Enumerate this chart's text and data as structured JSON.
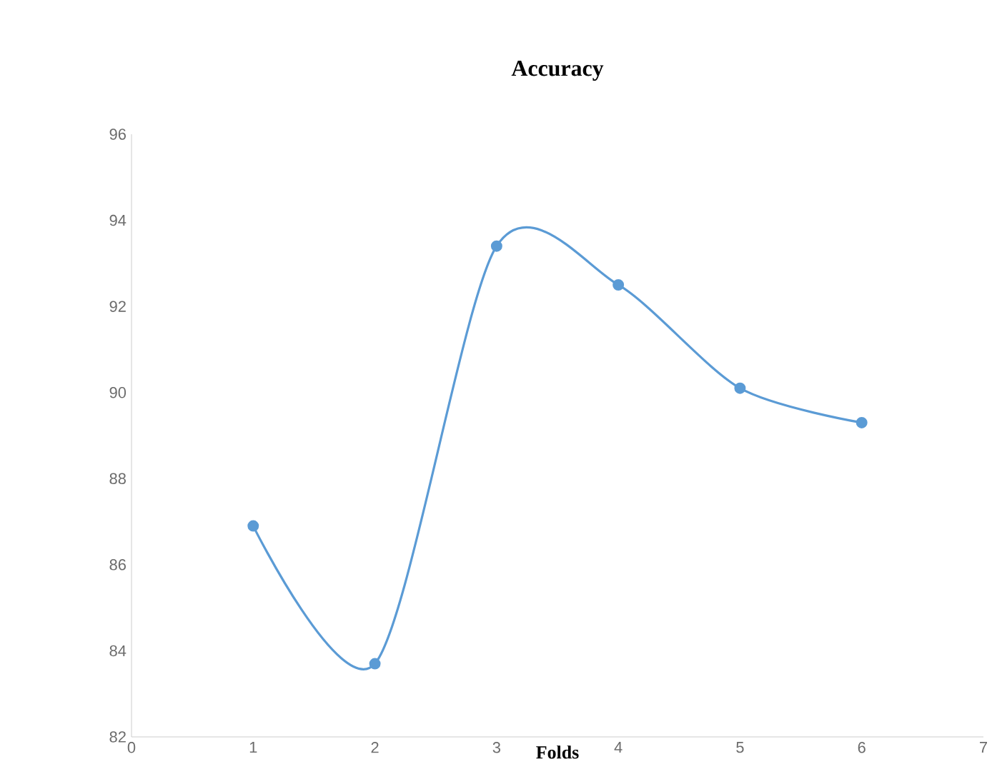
{
  "chart_data": {
    "type": "line",
    "title": "Accuracy",
    "xlabel": "Folds",
    "x": [
      1,
      2,
      3,
      4,
      5,
      6
    ],
    "series": [
      {
        "color": "#5b9bd5",
        "values": [
          86.9,
          83.7,
          93.4,
          92.5,
          90.1,
          89.3
        ]
      }
    ],
    "xlim": [
      0,
      7
    ],
    "xticks": [
      0,
      1,
      2,
      3,
      4,
      5,
      6,
      7
    ],
    "ylim": [
      82,
      96
    ],
    "yticks": [
      82,
      84,
      86,
      88,
      90,
      92,
      94,
      96
    ],
    "grid": false,
    "marker": "circle",
    "line_style": "solid"
  }
}
